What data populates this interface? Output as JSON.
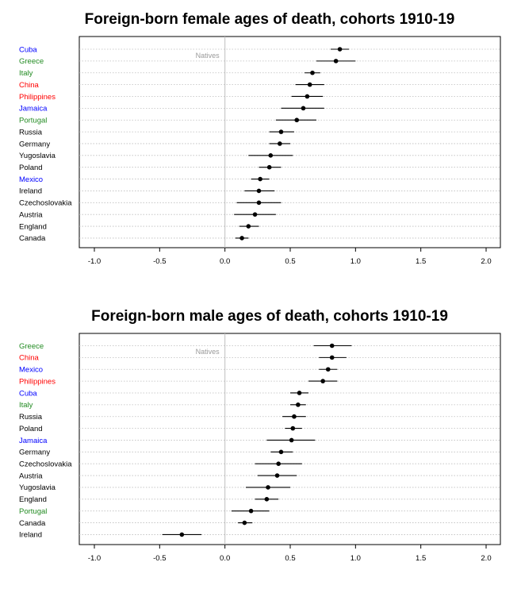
{
  "colors": {
    "green": "#228b22",
    "red": "#ff0000",
    "blue": "#0000ff",
    "black": "#000000",
    "reference_line": "#c0c0c0",
    "reference_label": "#9a9a9a",
    "gridline": "#bdbdbd"
  },
  "chart_data": [
    {
      "type": "scatter",
      "subtype": "dot-and-whisker",
      "title": "Foreign-born female ages of death, cohorts 1910-19",
      "xlabel": "",
      "ylabel": "",
      "xlim": [
        -1.0,
        2.0
      ],
      "xticks": [
        "-1.0",
        "-0.5",
        "0.0",
        "0.5",
        "1.0",
        "1.5",
        "2.0"
      ],
      "reference_line": {
        "x": 0,
        "label": "Natives"
      },
      "grid": "horizontal dotted",
      "rows": [
        {
          "label": "Cuba",
          "color": "blue",
          "estimate": 0.88,
          "low": 0.81,
          "high": 0.95
        },
        {
          "label": "Greece",
          "color": "green",
          "estimate": 0.85,
          "low": 0.7,
          "high": 1.0
        },
        {
          "label": "Italy",
          "color": "green",
          "estimate": 0.67,
          "low": 0.61,
          "high": 0.73
        },
        {
          "label": "China",
          "color": "red",
          "estimate": 0.65,
          "low": 0.54,
          "high": 0.76
        },
        {
          "label": "Philippines",
          "color": "red",
          "estimate": 0.63,
          "low": 0.51,
          "high": 0.75
        },
        {
          "label": "Jamaica",
          "color": "blue",
          "estimate": 0.6,
          "low": 0.43,
          "high": 0.76
        },
        {
          "label": "Portugal",
          "color": "green",
          "estimate": 0.55,
          "low": 0.39,
          "high": 0.7
        },
        {
          "label": "Russia",
          "color": "black",
          "estimate": 0.43,
          "low": 0.34,
          "high": 0.53
        },
        {
          "label": "Germany",
          "color": "black",
          "estimate": 0.42,
          "low": 0.34,
          "high": 0.5
        },
        {
          "label": "Yugoslavia",
          "color": "black",
          "estimate": 0.35,
          "low": 0.18,
          "high": 0.52
        },
        {
          "label": "Poland",
          "color": "black",
          "estimate": 0.34,
          "low": 0.26,
          "high": 0.43
        },
        {
          "label": "Mexico",
          "color": "blue",
          "estimate": 0.27,
          "low": 0.2,
          "high": 0.34
        },
        {
          "label": "Ireland",
          "color": "black",
          "estimate": 0.26,
          "low": 0.15,
          "high": 0.38
        },
        {
          "label": "Czechoslovakia",
          "color": "black",
          "estimate": 0.26,
          "low": 0.09,
          "high": 0.43
        },
        {
          "label": "Austria",
          "color": "black",
          "estimate": 0.23,
          "low": 0.07,
          "high": 0.39
        },
        {
          "label": "England",
          "color": "black",
          "estimate": 0.18,
          "low": 0.11,
          "high": 0.26
        },
        {
          "label": "Canada",
          "color": "black",
          "estimate": 0.13,
          "low": 0.08,
          "high": 0.18
        }
      ]
    },
    {
      "type": "scatter",
      "subtype": "dot-and-whisker",
      "title": "Foreign-born male ages of death, cohorts 1910-19",
      "xlabel": "",
      "ylabel": "",
      "xlim": [
        -1.0,
        2.0
      ],
      "xticks": [
        "-1.0",
        "-0.5",
        "0.0",
        "0.5",
        "1.0",
        "1.5",
        "2.0"
      ],
      "reference_line": {
        "x": 0,
        "label": "Natives"
      },
      "grid": "horizontal dotted",
      "rows": [
        {
          "label": "Greece",
          "color": "green",
          "estimate": 0.82,
          "low": 0.68,
          "high": 0.97
        },
        {
          "label": "China",
          "color": "red",
          "estimate": 0.82,
          "low": 0.72,
          "high": 0.93
        },
        {
          "label": "Mexico",
          "color": "blue",
          "estimate": 0.79,
          "low": 0.72,
          "high": 0.86
        },
        {
          "label": "Philippines",
          "color": "red",
          "estimate": 0.75,
          "low": 0.64,
          "high": 0.86
        },
        {
          "label": "Cuba",
          "color": "blue",
          "estimate": 0.57,
          "low": 0.5,
          "high": 0.64
        },
        {
          "label": "Italy",
          "color": "green",
          "estimate": 0.56,
          "low": 0.5,
          "high": 0.62
        },
        {
          "label": "Russia",
          "color": "black",
          "estimate": 0.53,
          "low": 0.44,
          "high": 0.62
        },
        {
          "label": "Poland",
          "color": "black",
          "estimate": 0.52,
          "low": 0.46,
          "high": 0.59
        },
        {
          "label": "Jamaica",
          "color": "blue",
          "estimate": 0.51,
          "low": 0.32,
          "high": 0.69
        },
        {
          "label": "Germany",
          "color": "black",
          "estimate": 0.43,
          "low": 0.35,
          "high": 0.52
        },
        {
          "label": "Czechoslovakia",
          "color": "black",
          "estimate": 0.41,
          "low": 0.23,
          "high": 0.59
        },
        {
          "label": "Austria",
          "color": "black",
          "estimate": 0.4,
          "low": 0.25,
          "high": 0.55
        },
        {
          "label": "Yugoslavia",
          "color": "black",
          "estimate": 0.33,
          "low": 0.16,
          "high": 0.5
        },
        {
          "label": "England",
          "color": "black",
          "estimate": 0.32,
          "low": 0.23,
          "high": 0.41
        },
        {
          "label": "Portugal",
          "color": "green",
          "estimate": 0.2,
          "low": 0.05,
          "high": 0.34
        },
        {
          "label": "Canada",
          "color": "black",
          "estimate": 0.15,
          "low": 0.1,
          "high": 0.21
        },
        {
          "label": "Ireland",
          "color": "black",
          "estimate": -0.33,
          "low": -0.48,
          "high": -0.18
        }
      ]
    }
  ]
}
